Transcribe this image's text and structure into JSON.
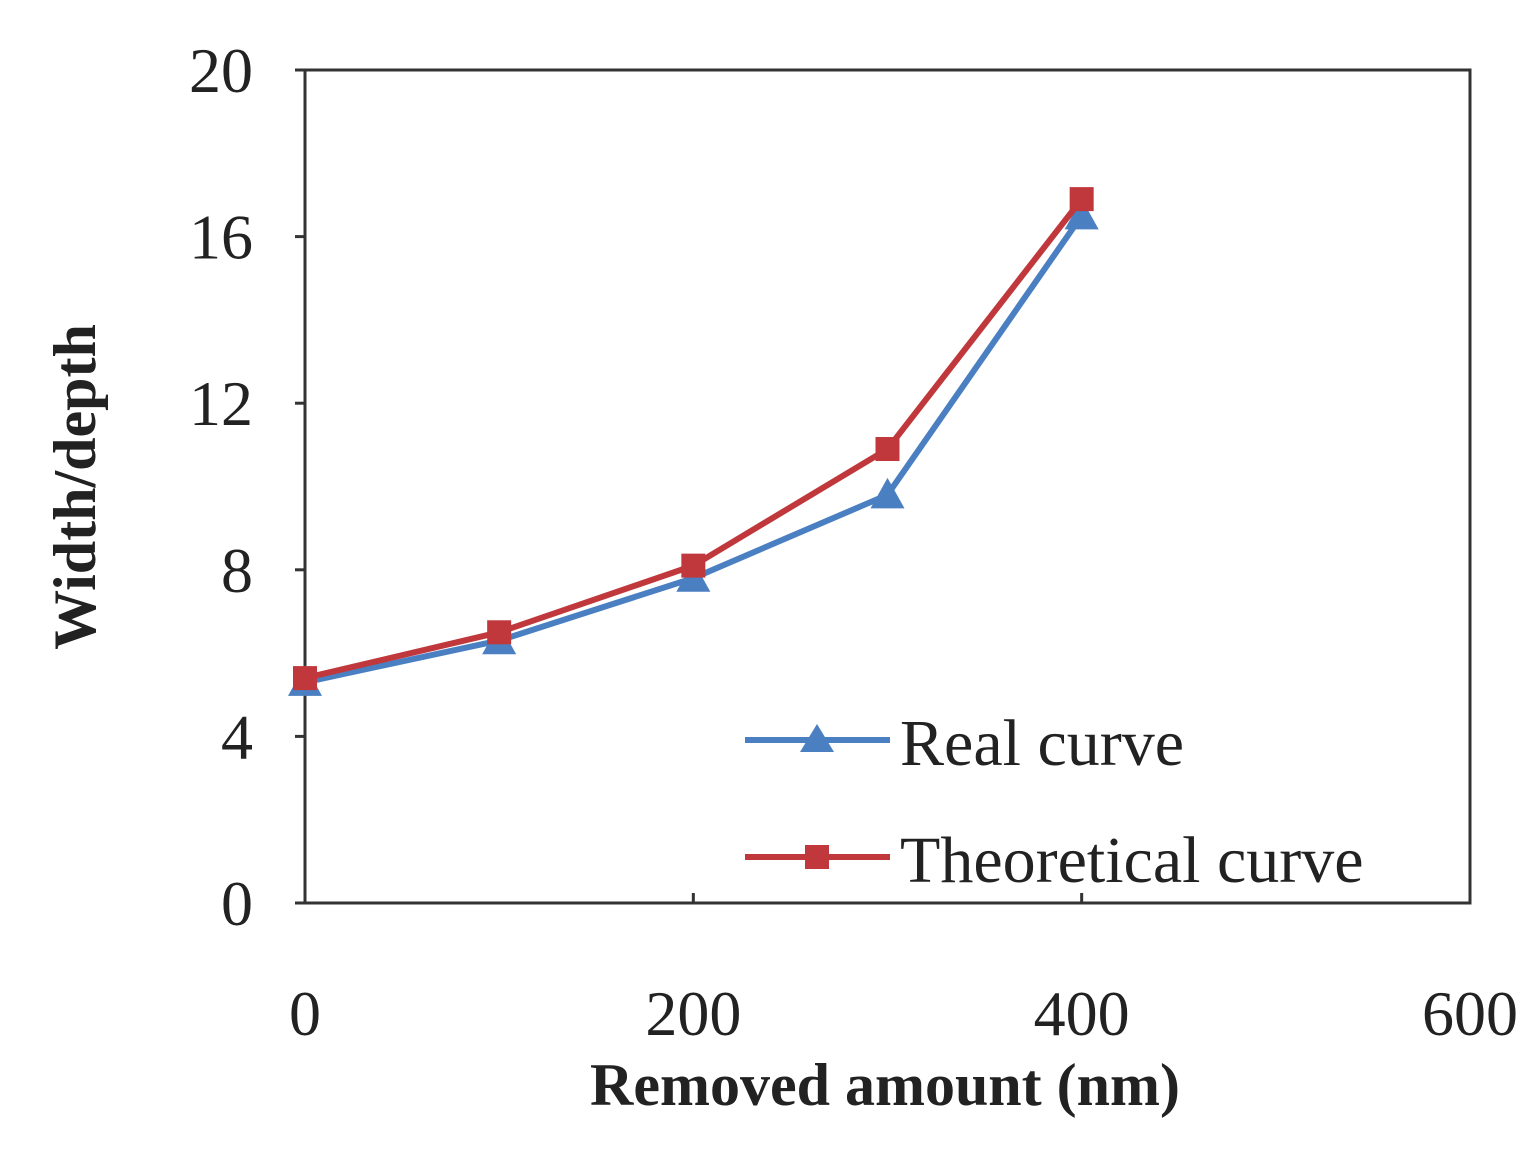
{
  "chart_data": {
    "type": "line",
    "title": "",
    "xlabel": "Removed amount (nm)",
    "ylabel": "Width/depth",
    "xlim": [
      0,
      600
    ],
    "ylim": [
      0,
      20
    ],
    "x_ticks": [
      "0",
      "200",
      "400",
      "600"
    ],
    "y_ticks": [
      "0",
      "4",
      "8",
      "12",
      "16",
      "20"
    ],
    "grid": false,
    "legend_position": "bottom-right",
    "x": [
      0,
      100,
      200,
      300,
      400
    ],
    "series": [
      {
        "name": "Real curve",
        "marker": "triangle",
        "color": "#4a7fc1",
        "values": [
          5.3,
          6.3,
          7.8,
          9.8,
          16.5
        ]
      },
      {
        "name": "Theoretical curve",
        "marker": "square",
        "color": "#c0383c",
        "values": [
          5.4,
          6.5,
          8.1,
          10.9,
          16.9
        ]
      }
    ]
  }
}
